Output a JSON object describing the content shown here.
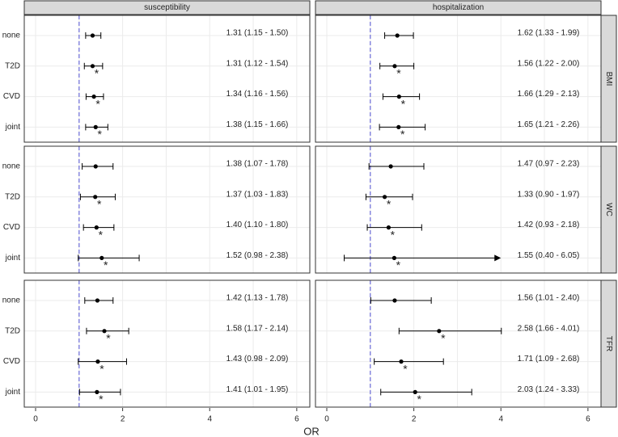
{
  "chart_data": {
    "type": "forest",
    "x_label": "OR",
    "xlim": [
      -0.26,
      6.3
    ],
    "xticks": [
      0,
      2,
      4,
      6
    ],
    "grid": true,
    "reference": 1,
    "reference_color": "#6a6ad8",
    "columns": [
      "susceptibility",
      "hospitalization"
    ],
    "rows": [
      "BMI",
      "WC",
      "TFR"
    ],
    "categories": [
      "none",
      "T2D",
      "CVD",
      "joint"
    ],
    "panels": [
      {
        "column": 0,
        "row": 0,
        "estimates": [
          1.31,
          1.31,
          1.34,
          1.38
        ],
        "lower": [
          1.15,
          1.12,
          1.16,
          1.15
        ],
        "upper": [
          1.5,
          1.54,
          1.56,
          1.66
        ],
        "labels": [
          "1.31 (1.15 - 1.50)",
          "1.31 (1.12 - 1.54)",
          "1.34 (1.16 - 1.56)",
          "1.38 (1.15 - 1.66)"
        ],
        "notes": [
          null,
          "*",
          "*",
          "*"
        ]
      },
      {
        "column": 1,
        "row": 0,
        "estimates": [
          1.62,
          1.56,
          1.66,
          1.65
        ],
        "lower": [
          1.33,
          1.22,
          1.29,
          1.21
        ],
        "upper": [
          1.99,
          2.0,
          2.13,
          2.26
        ],
        "labels": [
          "1.62 (1.33 - 1.99)",
          "1.56 (1.22 - 2.00)",
          "1.66 (1.29 - 2.13)",
          "1.65 (1.21 - 2.26)"
        ],
        "notes": [
          null,
          "*",
          "*",
          "*"
        ]
      },
      {
        "column": 0,
        "row": 1,
        "estimates": [
          1.38,
          1.37,
          1.4,
          1.52
        ],
        "lower": [
          1.07,
          1.03,
          1.1,
          0.98
        ],
        "upper": [
          1.78,
          1.83,
          1.8,
          2.38
        ],
        "labels": [
          "1.38 (1.07 - 1.78)",
          "1.37 (1.03 - 1.83)",
          "1.40 (1.10 - 1.80)",
          "1.52 (0.98 - 2.38)"
        ],
        "notes": [
          null,
          "*",
          "*",
          "*"
        ]
      },
      {
        "column": 1,
        "row": 1,
        "estimates": [
          1.47,
          1.33,
          1.42,
          1.55
        ],
        "lower": [
          0.97,
          0.9,
          0.93,
          0.4
        ],
        "upper": [
          2.23,
          1.97,
          2.18,
          6.05
        ],
        "labels": [
          "1.47 (0.97 - 2.23)",
          "1.33 (0.90 - 1.97)",
          "1.42 (0.93 - 2.18)",
          "1.55 (0.40 - 6.05)"
        ],
        "notes": [
          null,
          "*",
          "*",
          "*"
        ],
        "arrow_at": [
          null,
          null,
          null,
          4
        ]
      },
      {
        "column": 0,
        "row": 2,
        "estimates": [
          1.42,
          1.58,
          1.43,
          1.41
        ],
        "lower": [
          1.13,
          1.17,
          0.98,
          1.01
        ],
        "upper": [
          1.78,
          2.14,
          2.09,
          1.95
        ],
        "labels": [
          "1.42 (1.13 - 1.78)",
          "1.58 (1.17 - 2.14)",
          "1.43 (0.98 - 2.09)",
          "1.41 (1.01 - 1.95)"
        ],
        "notes": [
          null,
          "*",
          "*",
          "*"
        ]
      },
      {
        "column": 1,
        "row": 2,
        "estimates": [
          1.56,
          2.58,
          1.71,
          2.03
        ],
        "lower": [
          1.01,
          1.66,
          1.09,
          1.24
        ],
        "upper": [
          2.4,
          4.01,
          2.68,
          3.33
        ],
        "labels": [
          "1.56 (1.01 - 2.40)",
          "2.58 (1.66 - 4.01)",
          "1.71 (1.09 - 2.68)",
          "2.03 (1.24 - 3.33)"
        ],
        "notes": [
          null,
          "*",
          "*",
          "*"
        ]
      }
    ]
  }
}
